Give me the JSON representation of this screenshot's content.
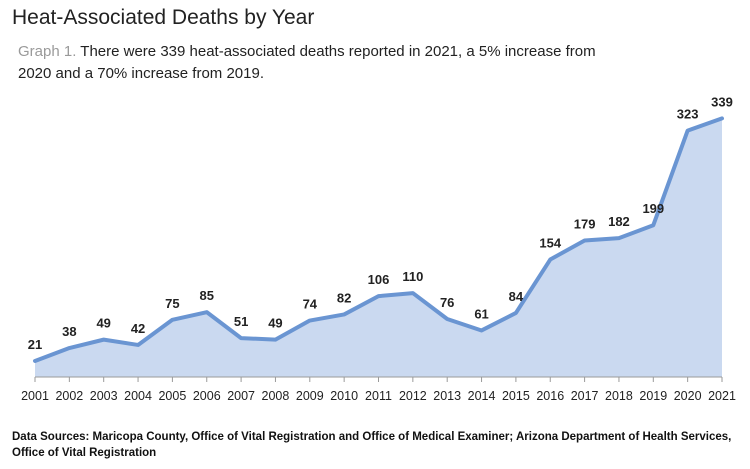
{
  "title": "Heat-Associated Deaths by Year",
  "subtitle_prefix": "Graph 1.",
  "subtitle": "There were 339 heat-associated deaths reported in 2021, a 5% increase from 2020 and a 70% increase from 2019.",
  "source": "Data Sources: Maricopa County, Office of Vital Registration and Office of Medical Examiner; Arizona Department of Health Services, Office of Vital Registration",
  "colors": {
    "line": "#6a95d2",
    "fill": "#cad9f0",
    "axis": "#9a9a9a",
    "label": "#222222"
  },
  "chart_data": {
    "type": "area",
    "title": "Heat-Associated Deaths by Year",
    "xlabel": "",
    "ylabel": "",
    "x": [
      "2001",
      "2002",
      "2003",
      "2004",
      "2005",
      "2006",
      "2007",
      "2008",
      "2009",
      "2010",
      "2011",
      "2012",
      "2013",
      "2014",
      "2015",
      "2016",
      "2017",
      "2018",
      "2019",
      "2020",
      "2021"
    ],
    "values": [
      21,
      38,
      49,
      42,
      75,
      85,
      51,
      49,
      74,
      82,
      106,
      110,
      76,
      61,
      84,
      154,
      179,
      182,
      199,
      323,
      339
    ],
    "data_labels": true,
    "grid": false,
    "legend": "none",
    "ylim": [
      0,
      350
    ]
  }
}
